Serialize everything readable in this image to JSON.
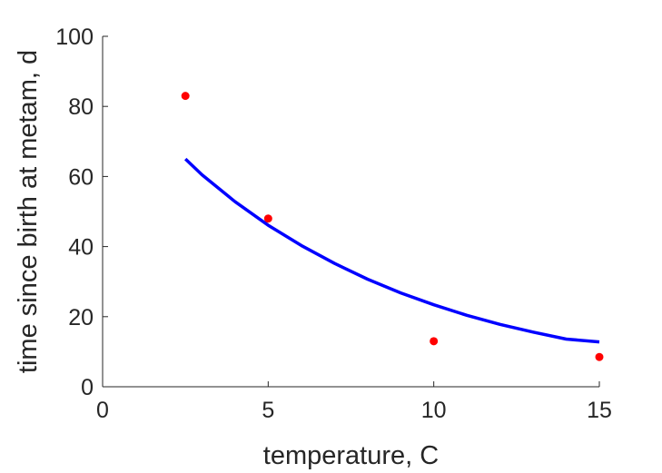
{
  "chart_data": {
    "type": "scatter",
    "xlabel": "temperature, C",
    "ylabel": "time since birth at metam, d",
    "xlim": [
      0,
      15
    ],
    "ylim": [
      0,
      100
    ],
    "x_ticks": [
      0,
      5,
      10,
      15
    ],
    "y_ticks": [
      0,
      20,
      40,
      60,
      80,
      100
    ],
    "x_tick_labels": [
      "0",
      "5",
      "10",
      "15"
    ],
    "y_tick_labels": [
      "0",
      "20",
      "40",
      "60",
      "80",
      "100"
    ],
    "grid": false,
    "series": [
      {
        "type": "scatter",
        "color": "#ff0000",
        "x": [
          2.5,
          5,
          10,
          15
        ],
        "y": [
          83,
          48,
          13,
          8.5
        ]
      },
      {
        "type": "line",
        "color": "#0000ff",
        "x": [
          2.5,
          3,
          4,
          5,
          6,
          7,
          8,
          9,
          10,
          11,
          12,
          13,
          14,
          15
        ],
        "y": [
          65,
          60.5,
          52.8,
          46.1,
          40.3,
          35.2,
          30.7,
          26.8,
          23.4,
          20.4,
          17.8,
          15.6,
          13.6,
          12.8
        ]
      }
    ]
  }
}
